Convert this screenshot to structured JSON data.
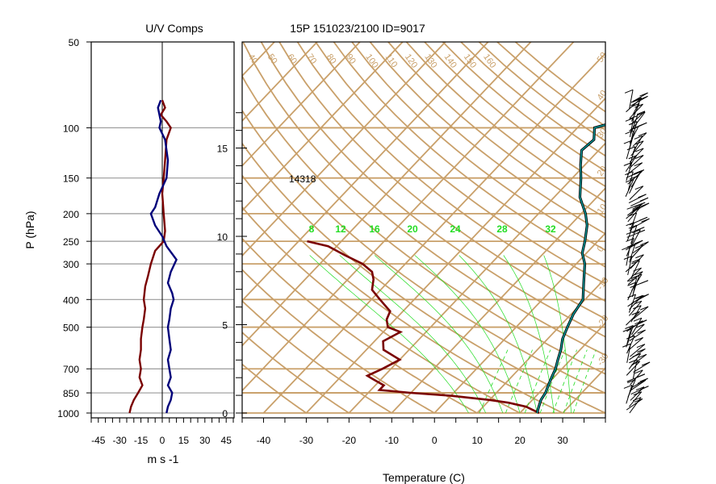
{
  "chart_data": [
    {
      "type": "line",
      "title": "U/V Comps",
      "xlabel": "m s -1",
      "ylabel": "P (hPa)",
      "xlim": [
        -50,
        50
      ],
      "x_ticks": [
        "-45",
        "-30",
        "-15",
        "0",
        "15",
        "30",
        "45"
      ],
      "y_ticks": [
        "50",
        "100",
        "150",
        "200",
        "250",
        "300",
        "400",
        "500",
        "700",
        "850",
        "1000"
      ],
      "grid_pressures": [
        100,
        150,
        200,
        250,
        300,
        400,
        500,
        700,
        850,
        1000
      ],
      "series": [
        {
          "color": "#7a0000",
          "points": [
            [
              0,
              80
            ],
            [
              2,
              85
            ],
            [
              -1,
              90
            ],
            [
              3,
              95
            ],
            [
              6,
              100
            ],
            [
              3,
              110
            ],
            [
              2,
              130
            ],
            [
              1,
              150
            ],
            [
              0,
              170
            ],
            [
              1,
              200
            ],
            [
              2,
              230
            ],
            [
              1,
              250
            ],
            [
              -5,
              270
            ],
            [
              -8,
              300
            ],
            [
              -10,
              330
            ],
            [
              -12,
              360
            ],
            [
              -13,
              400
            ],
            [
              -12,
              430
            ],
            [
              -13,
              470
            ],
            [
              -14,
              500
            ],
            [
              -15,
              550
            ],
            [
              -15,
              600
            ],
            [
              -16,
              650
            ],
            [
              -15,
              700
            ],
            [
              -16,
              750
            ],
            [
              -14,
              800
            ],
            [
              -17,
              850
            ],
            [
              -20,
              900
            ],
            [
              -22,
              950
            ],
            [
              -23,
              1000
            ]
          ]
        },
        {
          "color": "#00007a",
          "points": [
            [
              -1,
              80
            ],
            [
              -3,
              85
            ],
            [
              -2,
              90
            ],
            [
              -1,
              95
            ],
            [
              -2,
              100
            ],
            [
              2,
              110
            ],
            [
              4,
              130
            ],
            [
              3,
              150
            ],
            [
              -2,
              170
            ],
            [
              -5,
              190
            ],
            [
              -8,
              200
            ],
            [
              -5,
              220
            ],
            [
              0,
              240
            ],
            [
              3,
              260
            ],
            [
              10,
              290
            ],
            [
              6,
              320
            ],
            [
              4,
              350
            ],
            [
              7,
              380
            ],
            [
              8,
              400
            ],
            [
              6,
              430
            ],
            [
              5,
              470
            ],
            [
              4,
              500
            ],
            [
              5,
              550
            ],
            [
              6,
              600
            ],
            [
              4,
              650
            ],
            [
              5,
              700
            ],
            [
              6,
              750
            ],
            [
              4,
              800
            ],
            [
              7,
              850
            ],
            [
              6,
              900
            ],
            [
              4,
              950
            ],
            [
              3,
              1000
            ]
          ]
        }
      ]
    },
    {
      "type": "line",
      "title": "15P 151023/2100 ID=9017",
      "xlabel": "Temperature (C)",
      "xlim": [
        -45,
        40
      ],
      "x_ticks": [
        "-40",
        "-30",
        "-20",
        "-10",
        "0",
        "10",
        "20",
        "30"
      ],
      "height_ticks": [
        "0",
        "5",
        "10",
        "15"
      ],
      "annotation": "14318",
      "mixing_ratio_labels": [
        "8",
        "12",
        "16",
        "20",
        "24",
        "28",
        "32"
      ],
      "temperature": [
        [
          24,
          1000
        ],
        [
          23,
          950
        ],
        [
          22,
          900
        ],
        [
          21.5,
          850
        ],
        [
          20.5,
          800
        ],
        [
          19.5,
          750
        ],
        [
          18.5,
          700
        ],
        [
          17,
          650
        ],
        [
          15.5,
          600
        ],
        [
          13.5,
          550
        ],
        [
          12,
          500
        ],
        [
          10.5,
          450
        ],
        [
          9.5,
          400
        ],
        [
          6,
          350
        ],
        [
          2,
          300
        ],
        [
          -1,
          275
        ],
        [
          -3,
          250
        ],
        [
          -6,
          220
        ],
        [
          -9,
          200
        ],
        [
          -14,
          175
        ],
        [
          -18,
          150
        ],
        [
          -21,
          135
        ],
        [
          -24,
          120
        ],
        [
          -23.5,
          110
        ],
        [
          -26,
          100
        ],
        [
          -22,
          95
        ],
        [
          -18,
          92
        ],
        [
          -16,
          88
        ],
        [
          -14,
          83
        ],
        [
          -11,
          80
        ],
        [
          -8,
          78
        ]
      ],
      "dewpoint": [
        [
          24.5,
          1000
        ],
        [
          20,
          950
        ],
        [
          15,
          920
        ],
        [
          10,
          900
        ],
        [
          0,
          870
        ],
        [
          -10,
          850
        ],
        [
          -18,
          830
        ],
        [
          -18,
          800
        ],
        [
          -20,
          780
        ],
        [
          -22,
          760
        ],
        [
          -24,
          740
        ],
        [
          -22,
          700
        ],
        [
          -20,
          650
        ],
        [
          -26,
          600
        ],
        [
          -28,
          560
        ],
        [
          -26,
          520
        ],
        [
          -30,
          500
        ],
        [
          -32,
          470
        ],
        [
          -33,
          440
        ],
        [
          -38,
          400
        ],
        [
          -42,
          370
        ],
        [
          -44,
          340
        ],
        [
          -46,
          320
        ],
        [
          -50,
          300
        ],
        [
          -56,
          280
        ],
        [
          -62,
          260
        ],
        [
          -68,
          250
        ]
      ],
      "theta_isotherm_labels": [
        "40",
        "50",
        "60",
        "70",
        "80",
        "90",
        "100",
        "110",
        "120",
        "130",
        "140",
        "150",
        "160"
      ],
      "right_edge_labels": [
        "50",
        "40",
        "30",
        "20",
        "10",
        "0",
        "-10",
        "-20",
        "-30"
      ]
    }
  ],
  "wind_barbs_color": "#000000",
  "colors": {
    "temperature": "#004a4a",
    "dewpoint": "#7a0000",
    "dry_adiabat": "#c9a06a",
    "isotherm": "#c9a06a",
    "mixing_ratio": "#22dd22"
  }
}
